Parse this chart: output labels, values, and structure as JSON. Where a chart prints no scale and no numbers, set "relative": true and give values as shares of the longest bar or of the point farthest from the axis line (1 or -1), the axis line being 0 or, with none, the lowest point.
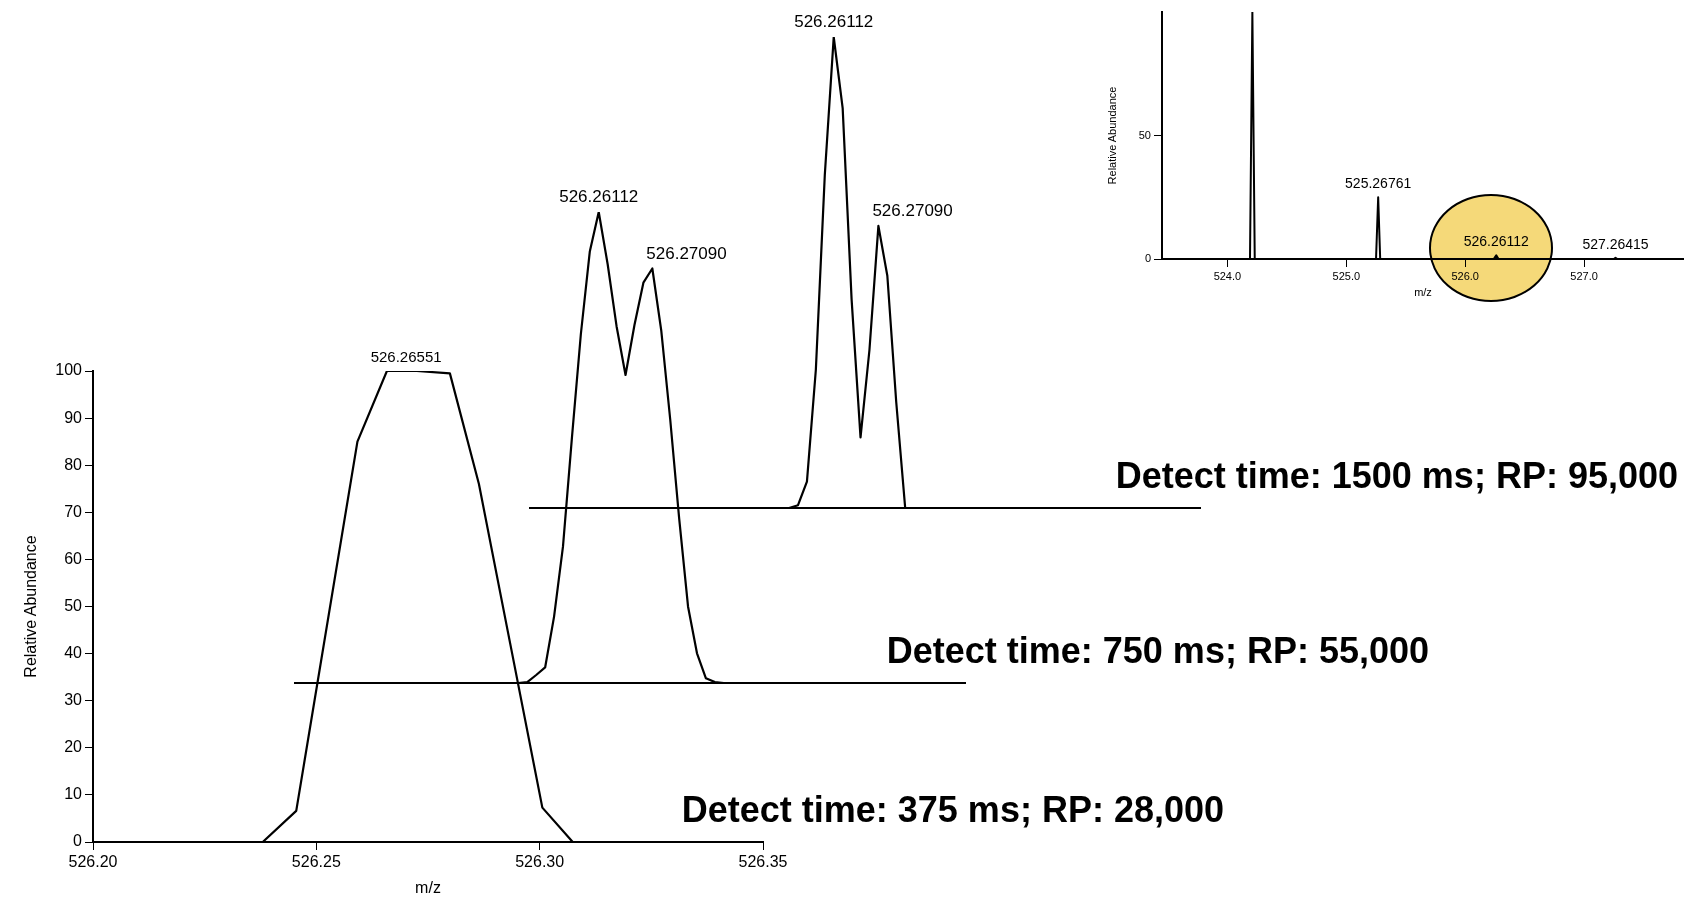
{
  "chart_data": [
    {
      "type": "line",
      "xlabel": "m/z",
      "ylabel": "Relative Abundance",
      "xlim": [
        526.2,
        526.35
      ],
      "ylim": [
        0,
        100
      ],
      "xticks": [
        {
          "value": 526.2,
          "label": "526.20"
        },
        {
          "value": 526.25,
          "label": "526.25"
        },
        {
          "value": 526.3,
          "label": "526.30"
        },
        {
          "value": 526.35,
          "label": "526.35"
        }
      ],
      "yticks": [
        0,
        10,
        20,
        30,
        40,
        50,
        60,
        70,
        80,
        90,
        100
      ],
      "grid": false,
      "marker": "none",
      "series": [
        {
          "color": "#000000",
          "x": [
            526.2248,
            526.238,
            526.2455,
            526.2592,
            526.2658,
            526.2725,
            526.2799,
            526.2864,
            526.3006,
            526.3074
          ],
          "values": [
            0,
            0,
            6.6,
            85,
            100,
            100,
            99.5,
            76,
            7.3,
            0
          ]
        }
      ],
      "annotations": [
        "Detect time: 375 ms; RP: 28,000",
        {
          "text": "526.26551",
          "x": 526.2701,
          "y": 100
        }
      ]
    },
    {
      "type": "line",
      "relative": true,
      "grid": false,
      "marker": "none",
      "categories": [
        null,
        null,
        null,
        null,
        null,
        null,
        null,
        null,
        null,
        null,
        null,
        null,
        null,
        null,
        null,
        null,
        null,
        null,
        null,
        null,
        null,
        null,
        null,
        null,
        null,
        null,
        null,
        null,
        null,
        null,
        null,
        null,
        null,
        null,
        null,
        null,
        null,
        null,
        null,
        null,
        null,
        null,
        null,
        null,
        null,
        null,
        null,
        null,
        null,
        null,
        null,
        null,
        null,
        null,
        null,
        null,
        null,
        null,
        null,
        null,
        null,
        null,
        null,
        null,
        null,
        null,
        null,
        null,
        null,
        null,
        null,
        null,
        null,
        null,
        null,
        null
      ],
      "series": [
        {
          "color": "#000000",
          "values": [
            0,
            0,
            0,
            0,
            0,
            0,
            0,
            0,
            0,
            0,
            0,
            0,
            0,
            0,
            0,
            0,
            0,
            0,
            0,
            0,
            0,
            0,
            0,
            0,
            0,
            0,
            0.002,
            0.017,
            0.033,
            0.141,
            0.29,
            0.521,
            0.741,
            0.916,
            1,
            0.889,
            0.757,
            0.654,
            0.76,
            0.85,
            0.88,
            0.748,
            0.56,
            0.35,
            0.162,
            0.063,
            0.01,
            0.002,
            0,
            0,
            0,
            0,
            0,
            0,
            0,
            0,
            0,
            0,
            0,
            0,
            0,
            0,
            0,
            0,
            0,
            0,
            0,
            0,
            0,
            0,
            0,
            0,
            0,
            0,
            0,
            0
          ]
        }
      ],
      "annotations": [
        "Detect time: 750 ms; RP: 55,000",
        "526.26112",
        "526.27090"
      ]
    },
    {
      "type": "line",
      "relative": true,
      "grid": false,
      "marker": "none",
      "categories": [
        null,
        null,
        null,
        null,
        null,
        null,
        null,
        null,
        null,
        null,
        null,
        null,
        null,
        null,
        null,
        null,
        null,
        null,
        null,
        null,
        null,
        null,
        null,
        null,
        null,
        null,
        null,
        null,
        null,
        null,
        null,
        null,
        null,
        null,
        null,
        null,
        null,
        null,
        null,
        null,
        null,
        null,
        null,
        null,
        null,
        null,
        null,
        null,
        null,
        null,
        null,
        null,
        null,
        null,
        null,
        null,
        null,
        null,
        null,
        null,
        null,
        null,
        null,
        null,
        null,
        null,
        null,
        null,
        null,
        null,
        null,
        null,
        null,
        null,
        null,
        null
      ],
      "series": [
        {
          "color": "#000000",
          "values": [
            0,
            0,
            0,
            0,
            0,
            0,
            0,
            0,
            0,
            0,
            0,
            0,
            0,
            0,
            0,
            0,
            0,
            0,
            0,
            0,
            0,
            0,
            0,
            0,
            0,
            0,
            0,
            0,
            0,
            0,
            0.006,
            0.056,
            0.294,
            0.707,
            1,
            0.849,
            0.443,
            0.15,
            0.336,
            0.599,
            0.493,
            0.224,
            0,
            0,
            0,
            0,
            0,
            0,
            0,
            0,
            0,
            0,
            0,
            0,
            0,
            0,
            0,
            0,
            0,
            0,
            0,
            0,
            0,
            0,
            0,
            0,
            0,
            0,
            0,
            0,
            0,
            0,
            0,
            0,
            0,
            0
          ]
        }
      ],
      "annotations": [
        "Detect time: 1500 ms; RP: 95,000",
        "526.26112",
        "526.27090"
      ]
    },
    {
      "type": "line",
      "xlabel": "m/z",
      "ylabel": "Relative Abundance",
      "xlim": [
        523.45,
        527.84
      ],
      "ylim": [
        0,
        100
      ],
      "xticks": [
        {
          "value": 524,
          "label": "524.0"
        },
        {
          "value": 525,
          "label": "525.0"
        },
        {
          "value": 526,
          "label": "526.0"
        },
        {
          "value": 527,
          "label": "527.0"
        }
      ],
      "yticks": [
        0,
        50
      ],
      "grid": false,
      "marker": "none",
      "series": [
        {
          "color": "#000000",
          "x": [
            523.45,
            524.19,
            524.21,
            524.23,
            525.25,
            525.268,
            525.285,
            526.24,
            526.261,
            526.28,
            527.25,
            527.264,
            527.28,
            527.84
          ],
          "values": [
            0,
            0,
            100,
            0,
            0,
            25,
            0,
            0,
            1.5,
            0,
            0,
            0.5,
            0,
            0
          ]
        }
      ],
      "annotations": [
        {
          "text": "525.26761",
          "x": 525.268,
          "y": 25
        },
        {
          "text": "526.26112",
          "x": 526.261,
          "y": 1.5
        },
        {
          "text": "527.26415",
          "x": 527.264,
          "y": 0.5
        }
      ]
    }
  ]
}
